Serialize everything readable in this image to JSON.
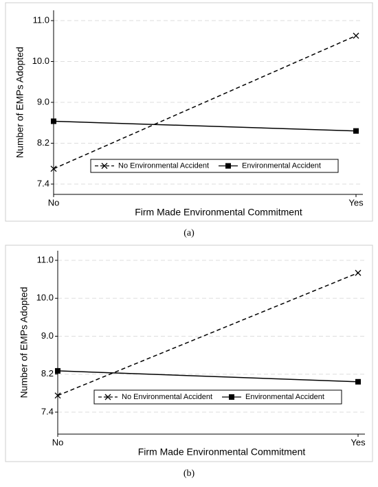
{
  "chart_data": [
    {
      "type": "line",
      "caption": "(a)",
      "xlabel": "Firm Made Environmental Commitment",
      "ylabel": "Number of EMPs Adopted",
      "categories": [
        "No",
        "Yes"
      ],
      "series": [
        {
          "name": "No Environmental Accident",
          "color": "#000000",
          "marker": "x",
          "linestyle": "dashed",
          "values": [
            7.7,
            10.63
          ]
        },
        {
          "name": "Environmental Accident",
          "color": "#000000",
          "marker": "square",
          "linestyle": "solid",
          "values": [
            8.63,
            8.44
          ]
        }
      ],
      "ylim": [
        7.2,
        11.2
      ],
      "yticks": [
        7.4,
        8.2,
        {
          "value": 9,
          "label": "9.0"
        },
        {
          "value": 10,
          "label": "10.0"
        },
        {
          "value": 11,
          "label": "11.0"
        }
      ],
      "grid": true
    },
    {
      "type": "line",
      "caption": "(b)",
      "xlabel": "Firm Made Environmental Commitment",
      "ylabel": "Number of EMPs Adopted",
      "categories": [
        "No",
        "Yes"
      ],
      "series": [
        {
          "name": "No Environmental Accident",
          "color": "#000000",
          "marker": "x",
          "linestyle": "dashed",
          "values": [
            7.75,
            10.67
          ]
        },
        {
          "name": "Environmental Accident",
          "color": "#000000",
          "marker": "square",
          "linestyle": "solid",
          "values": [
            8.27,
            8.04
          ]
        }
      ],
      "ylim": [
        6.95,
        11.25
      ],
      "yticks": [
        7.4,
        8.2,
        {
          "value": 9,
          "label": "9.0"
        },
        {
          "value": 10,
          "label": "10.0"
        },
        {
          "value": 11,
          "label": "11.0"
        }
      ],
      "grid": true
    }
  ]
}
